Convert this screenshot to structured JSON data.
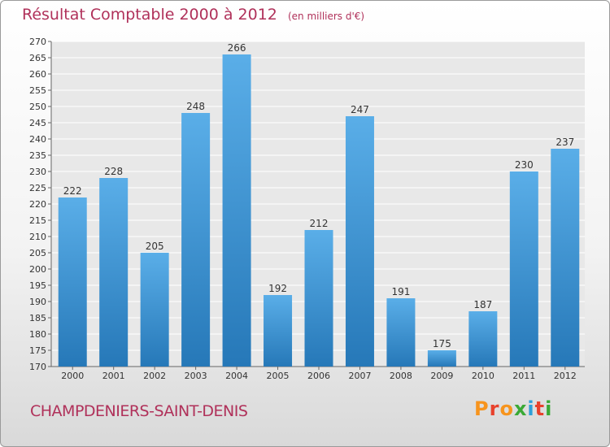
{
  "header": {
    "title": "Résultat Comptable 2000 à 2012",
    "subtitle": "(en milliers d'€)"
  },
  "footer": {
    "commune": "CHAMPDENIERS-SAINT-DENIS",
    "brand": "Proxiti",
    "brand_colors": [
      "#f7941d",
      "#e8412c",
      "#f7941d",
      "#3aa935",
      "#2e9fd8",
      "#e8412c",
      "#3aa935"
    ]
  },
  "colors": {
    "bar_top": "#5aaee8",
    "bar_bottom": "#2678b8",
    "plot_bg": "#e8e8e8",
    "grid": "#ffffff",
    "title": "#b0315a"
  },
  "chart_data": {
    "type": "bar",
    "title": "Résultat Comptable 2000 à 2012",
    "subtitle": "(en milliers d'€)",
    "categories": [
      "2000",
      "2001",
      "2002",
      "2003",
      "2004",
      "2005",
      "2006",
      "2007",
      "2008",
      "2009",
      "2010",
      "2011",
      "2012"
    ],
    "values": [
      222,
      228,
      205,
      248,
      266,
      192,
      212,
      247,
      191,
      175,
      187,
      230,
      237
    ],
    "xlabel": "",
    "ylabel": "",
    "ylim": [
      170,
      270
    ],
    "ytick_step": 5,
    "grid": true,
    "legend": "none"
  }
}
